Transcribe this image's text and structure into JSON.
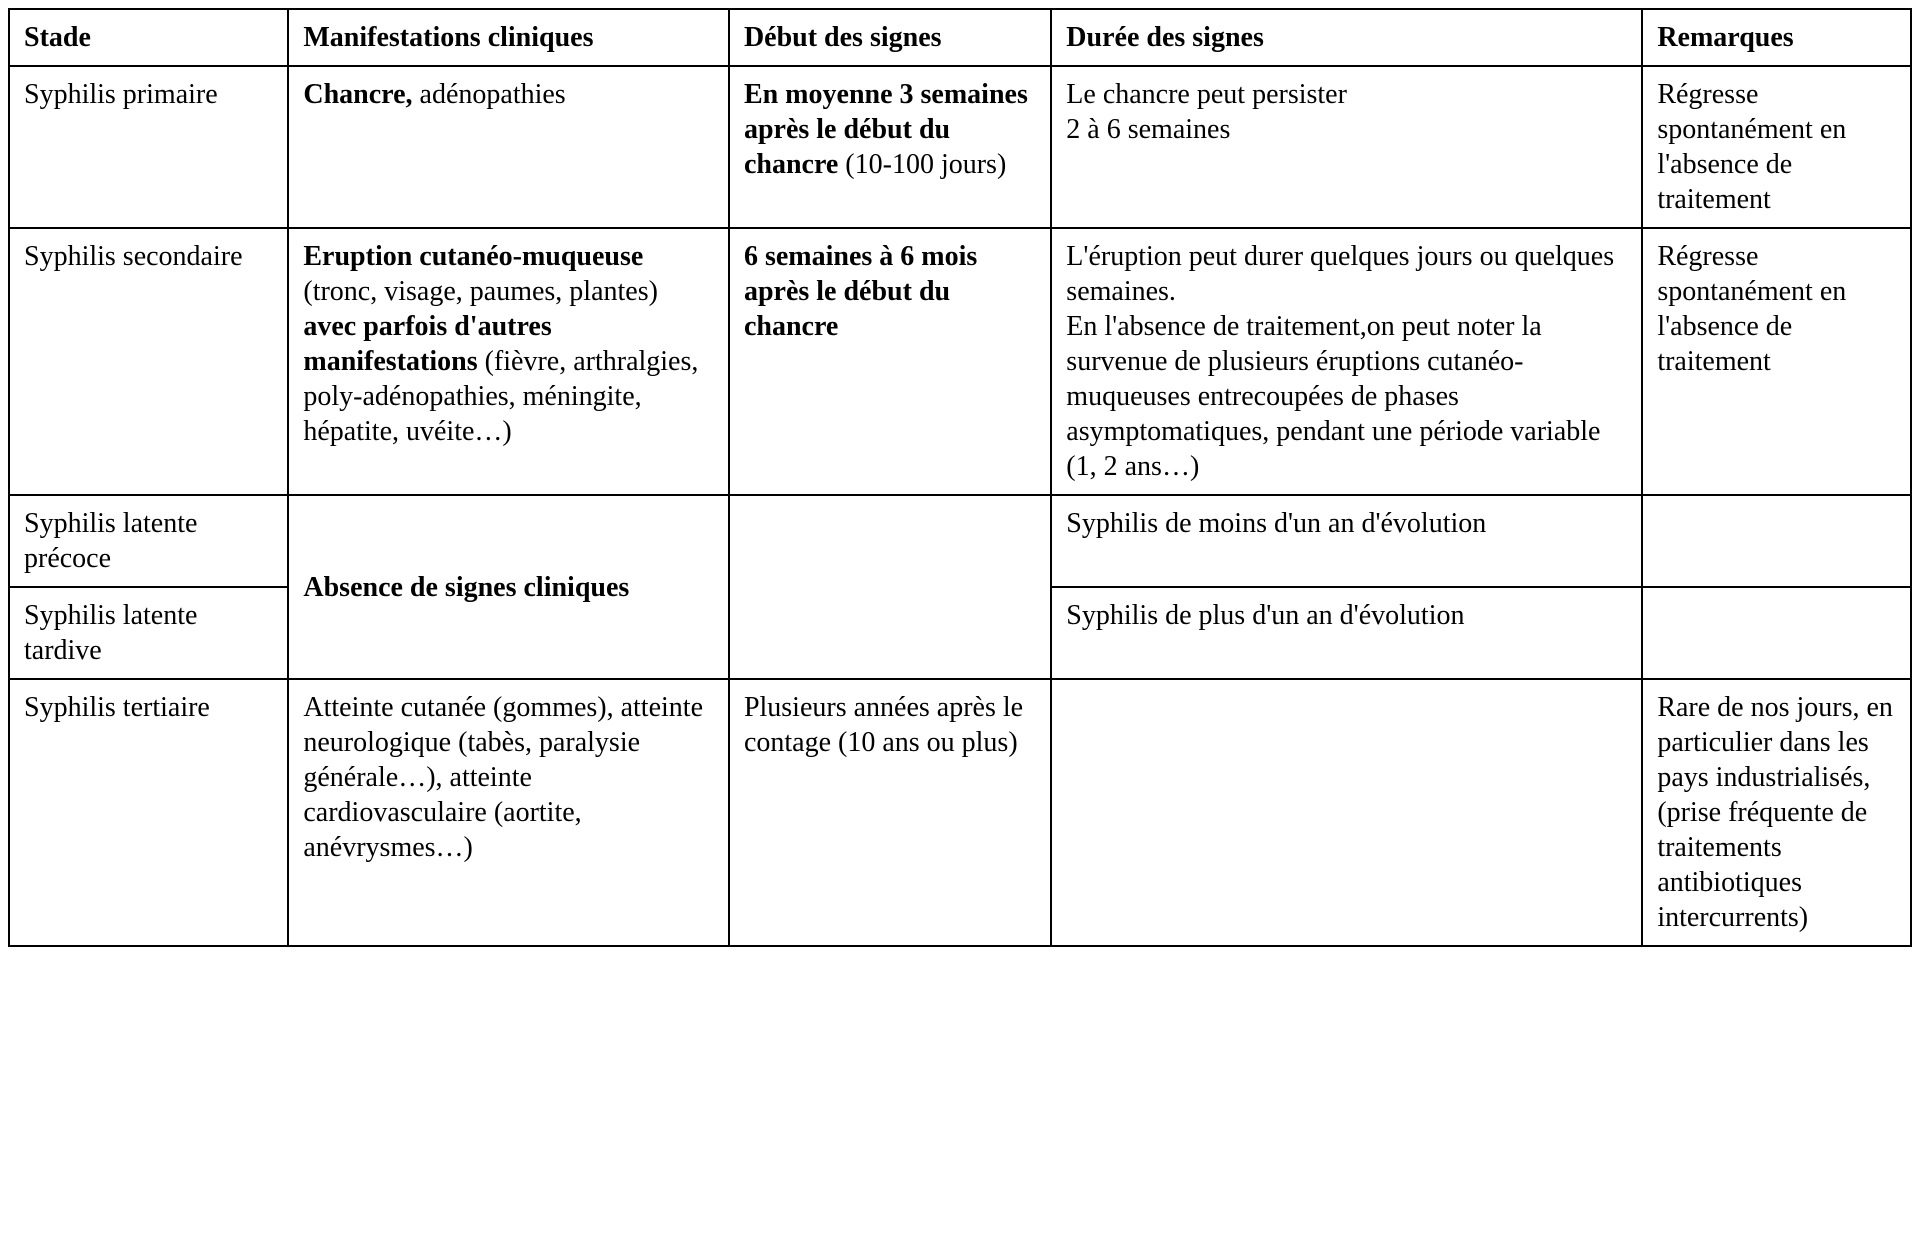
{
  "headers": {
    "c1": "Stade",
    "c2": "Manifestations cliniques",
    "c3": "Début des signes",
    "c4": "Durée des signes",
    "c5": "Remarques"
  },
  "row1": {
    "stade": "Syphilis primaire",
    "manif_b1": "Chancre,",
    "manif_t1": " adénopathies",
    "debut_b1": "En moyenne 3 semaines après le début du chancre",
    "debut_t1": " (10-100 jours)",
    "duree_l1": "Le chancre peut persister",
    "duree_l2": "2 à 6 semaines",
    "rem": "Régresse spontanément en l'absence de traitement"
  },
  "row2": {
    "stade": "Syphilis secondaire",
    "manif_b1": "Eruption cutanéo-muqueuse",
    "manif_t1": " (tronc, visage, paumes, plantes) ",
    "manif_b2": "avec parfois d'autres manifestations",
    "manif_t2": " (fièvre, arthralgies, poly-adénopathies, méningite, hépatite, uvéite…)",
    "debut_b1": "6 semaines à 6 mois  après le début du chancre",
    "duree_p1": "L'éruption peut durer quelques jours ou quelques semaines.",
    "duree_p2": "En l'absence de traitement,on peut noter la survenue de plusieurs éruptions cutanéo-muqueuses entrecoupées de phases asymptomatiques, pendant une période variable (1, 2 ans…)",
    "rem": "Régresse spontanément en l'absence de traitement"
  },
  "row3": {
    "stade": "Syphilis latente précoce",
    "manif_shared_b": "Absence de signes cliniques",
    "duree": "Syphilis de moins d'un an d'évolution"
  },
  "row4": {
    "stade": "Syphilis latente tardive",
    "duree": "Syphilis de plus d'un an d'évolution"
  },
  "row5": {
    "stade": "Syphilis tertiaire",
    "manif": "Atteinte cutanée (gommes), atteinte neurologique (tabès, paralysie générale…), atteinte cardiovasculaire (aortite, anévrysmes…)",
    "debut": "Plusieurs années après le contage (10 ans ou plus)",
    "rem": "Rare de nos jours, en particulier dans les pays industrialisés, (prise fréquente de traitements antibiotiques intercurrents)"
  }
}
